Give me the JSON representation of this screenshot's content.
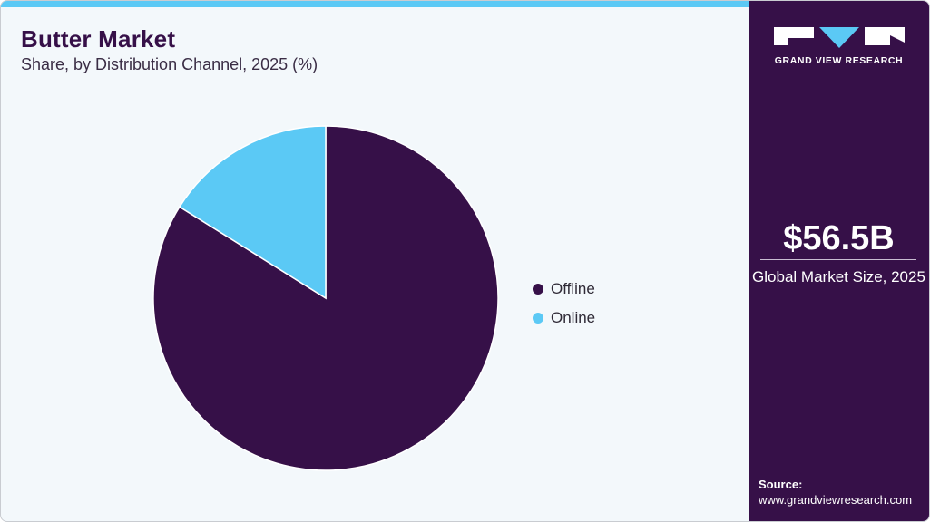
{
  "header": {
    "title": "Butter Market",
    "subtitle": "Share, by Distribution Channel, 2025 (%)"
  },
  "colors": {
    "offline": "#361048",
    "online": "#5bc9f5",
    "panel": "#361048",
    "accent_bar": "#5bc9f5",
    "background": "#f3f8fb"
  },
  "legend": {
    "items": [
      {
        "label": "Offline",
        "color": "#361048"
      },
      {
        "label": "Online",
        "color": "#5bc9f5"
      }
    ]
  },
  "sidebar": {
    "logo_text": "GRAND VIEW RESEARCH",
    "market_size": "$56.5B",
    "market_size_label": "Global Market Size, 2025",
    "source_label": "Source:",
    "source_url": "www.grandviewresearch.com"
  },
  "chart_data": {
    "type": "pie",
    "title": "Butter Market",
    "subtitle": "Share, by Distribution Channel, 2025 (%)",
    "categories": [
      "Offline",
      "Online"
    ],
    "values": [
      83.9,
      16.1
    ],
    "colors": [
      "#361048",
      "#5bc9f5"
    ],
    "start_angle": "12 o'clock",
    "legend_position": "right",
    "data_labels": false
  }
}
